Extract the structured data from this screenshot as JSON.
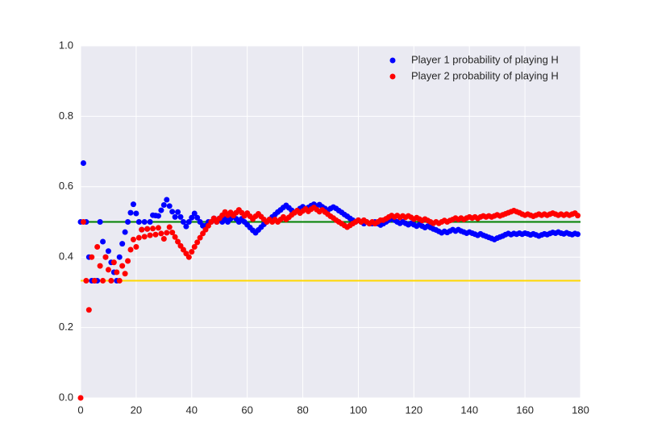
{
  "chart_data": {
    "type": "scatter",
    "x": [
      0,
      1,
      2,
      3,
      4,
      5,
      6,
      7,
      8,
      9,
      10,
      11,
      12,
      13,
      14,
      15,
      16,
      17,
      18,
      19,
      20,
      21,
      22,
      23,
      24,
      25,
      26,
      27,
      28,
      29,
      30,
      31,
      32,
      33,
      34,
      35,
      36,
      37,
      38,
      39,
      40,
      41,
      42,
      43,
      44,
      45,
      46,
      47,
      48,
      49,
      50,
      51,
      52,
      53,
      54,
      55,
      56,
      57,
      58,
      59,
      60,
      61,
      62,
      63,
      64,
      65,
      66,
      67,
      68,
      69,
      70,
      71,
      72,
      73,
      74,
      75,
      76,
      77,
      78,
      79,
      80,
      81,
      82,
      83,
      84,
      85,
      86,
      87,
      88,
      89,
      90,
      91,
      92,
      93,
      94,
      95,
      96,
      97,
      98,
      99,
      100,
      101,
      102,
      103,
      104,
      105,
      106,
      107,
      108,
      109,
      110,
      111,
      112,
      113,
      114,
      115,
      116,
      117,
      118,
      119,
      120,
      121,
      122,
      123,
      124,
      125,
      126,
      127,
      128,
      129,
      130,
      131,
      132,
      133,
      134,
      135,
      136,
      137,
      138,
      139,
      140,
      141,
      142,
      143,
      144,
      145,
      146,
      147,
      148,
      149,
      150,
      151,
      152,
      153,
      154,
      155,
      156,
      157,
      158,
      159,
      160,
      161,
      162,
      163,
      164,
      165,
      166,
      167,
      168,
      169,
      170,
      171,
      172,
      173,
      174,
      175,
      176,
      177,
      178,
      179
    ],
    "series": [
      {
        "name": "Player 1 probability of playing H",
        "color": "#0000ff",
        "values": [
          0.5,
          0.667,
          0.5,
          0.4,
          0.333,
          0.333,
          0.333,
          0.5,
          0.444,
          0.4,
          0.417,
          0.385,
          0.357,
          0.333,
          0.4,
          0.438,
          0.471,
          0.5,
          0.526,
          0.55,
          0.524,
          0.5,
          0.478,
          0.5,
          0.48,
          0.5,
          0.519,
          0.518,
          0.517,
          0.533,
          0.548,
          0.563,
          0.545,
          0.529,
          0.514,
          0.528,
          0.514,
          0.5,
          0.487,
          0.5,
          0.512,
          0.524,
          0.512,
          0.5,
          0.489,
          0.489,
          0.5,
          0.5,
          0.51,
          0.5,
          0.51,
          0.5,
          0.509,
          0.5,
          0.509,
          0.518,
          0.509,
          0.5,
          0.509,
          0.5,
          0.492,
          0.484,
          0.476,
          0.469,
          0.477,
          0.485,
          0.493,
          0.5,
          0.507,
          0.514,
          0.521,
          0.528,
          0.534,
          0.541,
          0.547,
          0.54,
          0.533,
          0.526,
          0.532,
          0.538,
          0.543,
          0.537,
          0.541,
          0.546,
          0.55,
          0.545,
          0.549,
          0.543,
          0.538,
          0.533,
          0.538,
          0.542,
          0.538,
          0.532,
          0.527,
          0.521,
          0.516,
          0.51,
          0.505,
          0.5,
          0.505,
          0.5,
          0.495,
          0.5,
          0.495,
          0.495,
          0.5,
          0.495,
          0.491,
          0.495,
          0.5,
          0.505,
          0.509,
          0.505,
          0.5,
          0.496,
          0.5,
          0.496,
          0.492,
          0.496,
          0.492,
          0.488,
          0.492,
          0.488,
          0.484,
          0.488,
          0.484,
          0.48,
          0.477,
          0.473,
          0.469,
          0.473,
          0.47,
          0.474,
          0.478,
          0.474,
          0.478,
          0.474,
          0.471,
          0.468,
          0.471,
          0.468,
          0.465,
          0.462,
          0.466,
          0.462,
          0.459,
          0.456,
          0.453,
          0.45,
          0.454,
          0.457,
          0.46,
          0.464,
          0.467,
          0.464,
          0.467,
          0.465,
          0.468,
          0.465,
          0.468,
          0.466,
          0.463,
          0.466,
          0.463,
          0.46,
          0.463,
          0.466,
          0.464,
          0.467,
          0.47,
          0.468,
          0.471,
          0.468,
          0.466,
          0.469,
          0.466,
          0.464,
          0.467,
          0.465
        ]
      },
      {
        "name": "Player 2 probability of playing H",
        "color": "#ff0000",
        "values": [
          0.0,
          0.5,
          0.333,
          0.25,
          0.4,
          0.333,
          0.429,
          0.375,
          0.333,
          0.4,
          0.364,
          0.333,
          0.385,
          0.357,
          0.333,
          0.375,
          0.353,
          0.389,
          0.421,
          0.45,
          0.429,
          0.455,
          0.478,
          0.458,
          0.48,
          0.462,
          0.481,
          0.464,
          0.483,
          0.467,
          0.452,
          0.469,
          0.485,
          0.47,
          0.457,
          0.444,
          0.432,
          0.421,
          0.41,
          0.4,
          0.415,
          0.429,
          0.442,
          0.455,
          0.467,
          0.478,
          0.489,
          0.5,
          0.51,
          0.5,
          0.51,
          0.519,
          0.528,
          0.519,
          0.527,
          0.518,
          0.526,
          0.534,
          0.526,
          0.517,
          0.525,
          0.516,
          0.508,
          0.516,
          0.523,
          0.515,
          0.507,
          0.5,
          0.507,
          0.5,
          0.507,
          0.5,
          0.507,
          0.514,
          0.507,
          0.513,
          0.52,
          0.526,
          0.532,
          0.525,
          0.531,
          0.537,
          0.53,
          0.536,
          0.541,
          0.535,
          0.529,
          0.534,
          0.528,
          0.522,
          0.516,
          0.511,
          0.505,
          0.5,
          0.495,
          0.49,
          0.485,
          0.49,
          0.495,
          0.5,
          0.505,
          0.5,
          0.505,
          0.5,
          0.495,
          0.5,
          0.495,
          0.5,
          0.505,
          0.505,
          0.509,
          0.514,
          0.518,
          0.514,
          0.518,
          0.513,
          0.517,
          0.513,
          0.517,
          0.513,
          0.508,
          0.512,
          0.508,
          0.504,
          0.508,
          0.504,
          0.5,
          0.496,
          0.5,
          0.496,
          0.5,
          0.504,
          0.5,
          0.504,
          0.507,
          0.511,
          0.507,
          0.511,
          0.507,
          0.511,
          0.514,
          0.511,
          0.514,
          0.51,
          0.514,
          0.517,
          0.514,
          0.517,
          0.514,
          0.517,
          0.52,
          0.517,
          0.52,
          0.523,
          0.526,
          0.529,
          0.532,
          0.529,
          0.526,
          0.522,
          0.519,
          0.522,
          0.519,
          0.516,
          0.519,
          0.522,
          0.519,
          0.522,
          0.519,
          0.522,
          0.525,
          0.522,
          0.519,
          0.522,
          0.519,
          0.522,
          0.519,
          0.522,
          0.525,
          0.518
        ]
      }
    ],
    "hlines": [
      {
        "value": 0.5,
        "color": "#008000"
      },
      {
        "value": 0.333,
        "color": "#ffd700"
      }
    ],
    "xlim": [
      0,
      180
    ],
    "xticks": [
      0,
      20,
      40,
      60,
      80,
      100,
      120,
      140,
      160,
      180
    ],
    "ylim": [
      0,
      1
    ],
    "yticks": [
      {
        "value": 0,
        "label": "0.0"
      },
      0.2,
      0.4,
      0.6,
      0.8,
      {
        "value": 1,
        "label": "1.0"
      }
    ],
    "grid": true,
    "legend": "upper right"
  }
}
